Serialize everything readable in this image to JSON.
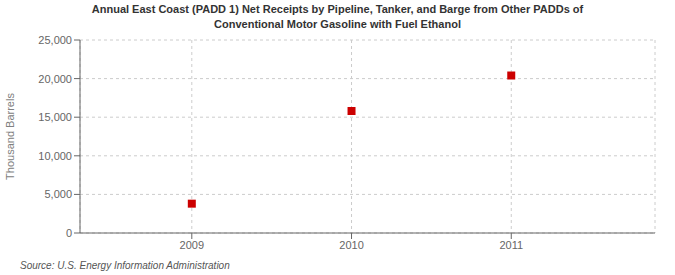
{
  "chart_data": {
    "type": "scatter",
    "title": "Annual East Coast (PADD 1) Net Receipts by Pipeline, Tanker, and Barge from Other PADDs of\nConventional Motor Gasoline with Fuel Ethanol",
    "ylabel": "Thousand Barrels",
    "source": "Source: U.S. Energy Information Administration",
    "x": [
      2009,
      2010,
      2011
    ],
    "values": [
      3800,
      15800,
      20400
    ],
    "color": "#cc0000",
    "marker": "square",
    "xlim": [
      2008.3,
      2011.9
    ],
    "xticks": [
      2009,
      2010,
      2011
    ],
    "ylim": [
      0,
      25000
    ],
    "yticks": [
      0,
      {
        "value": 5000,
        "label": "5,000"
      },
      {
        "value": 10000,
        "label": "10,000"
      },
      {
        "value": 15000,
        "label": "15,000"
      },
      {
        "value": 20000,
        "label": "20,000"
      },
      {
        "value": 25000,
        "label": "25,000"
      }
    ],
    "grid": true
  }
}
